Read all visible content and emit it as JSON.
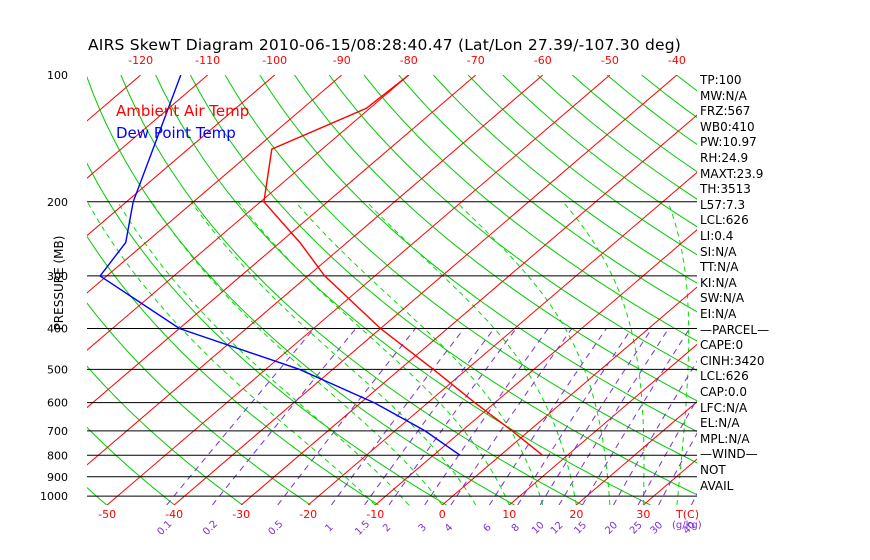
{
  "title": "AIRS SkewT Diagram 2010-06-15/08:28:40.47 (Lat/Lon 27.39/-107.30 deg)",
  "legend": {
    "air": "Ambient Air Temp",
    "dew": "Dew Point Temp"
  },
  "colors": {
    "air": "#ff0000",
    "dew": "#0000ff",
    "isotherm": "#ff0000",
    "dry_adiabat": "#00cc00",
    "moist_adiabat": "#00dd00",
    "mixing_ratio": "#7a2fd6",
    "isobar": "#000000"
  },
  "indices": [
    "TP:100",
    "MW:N/A",
    "FRZ:567",
    "WB0:410",
    "PW:10.97",
    "RH:24.9",
    "MAXT:23.9",
    "TH:3513",
    "L57:7.3",
    "LCL:626",
    "LI:0.4",
    "SI:N/A",
    "TT:N/A",
    "KI:N/A",
    "SW:N/A",
    "EI:N/A",
    "—PARCEL—",
    "CAPE:0",
    "CINH:3420",
    "LCL:626",
    "CAP:0.0",
    "LFC:N/A",
    "EL:N/A",
    "MPL:N/A",
    "—WIND—",
    "NOT",
    "AVAIL"
  ],
  "chart_data": {
    "type": "skewt",
    "title": "AIRS SkewT Diagram 2010-06-15/08:28:40.47 (Lat/Lon 27.39/-107.30 deg)",
    "ylabel": "PRESSURE (MB)",
    "xlabel": "T(C)",
    "mixing_ratio_label": "(g/kg)",
    "pressure_range_mb": [
      1050,
      100
    ],
    "temperature_range_bottom_c": [
      -53,
      38
    ],
    "temperature_range_top_c": [
      -128,
      -37
    ],
    "y_ticks": [
      "100",
      "200",
      "300",
      "400",
      "500",
      "600",
      "700",
      "800",
      "900",
      "1000"
    ],
    "isobars_drawn_mb": [
      200,
      300,
      400,
      500,
      600,
      700,
      800,
      900,
      1000
    ],
    "x_ticks_top": [
      -120,
      -110,
      -100,
      -90,
      -80,
      -70,
      -60,
      -50,
      -40
    ],
    "x_ticks_bottom": [
      -50,
      -40,
      -30,
      -20,
      -10,
      0,
      10,
      20,
      30
    ],
    "mixing_ratio_ticks": [
      "0.1",
      "0.2",
      "0.5",
      "1",
      "1.5",
      "2",
      "3",
      "4",
      "6",
      "8",
      "10",
      "12",
      "15",
      "20",
      "25",
      "30",
      "40"
    ],
    "series": [
      {
        "name": "Ambient Air Temp",
        "points": [
          [
            100,
            -80.0
          ],
          [
            120,
            -80.5
          ],
          [
            150,
            -87.5
          ],
          [
            200,
            -79.5
          ],
          [
            250,
            -67
          ],
          [
            300,
            -57.5
          ],
          [
            400,
            -40
          ],
          [
            500,
            -25
          ],
          [
            600,
            -13
          ],
          [
            700,
            -2.5
          ],
          [
            800,
            6.3
          ]
        ]
      },
      {
        "name": "Dew Point Temp",
        "points": [
          [
            100,
            -114
          ],
          [
            200,
            -99
          ],
          [
            250,
            -93
          ],
          [
            300,
            -91
          ],
          [
            400,
            -70
          ],
          [
            500,
            -45
          ],
          [
            600,
            -28
          ],
          [
            700,
            -15.5
          ],
          [
            800,
            -6
          ]
        ]
      }
    ]
  }
}
